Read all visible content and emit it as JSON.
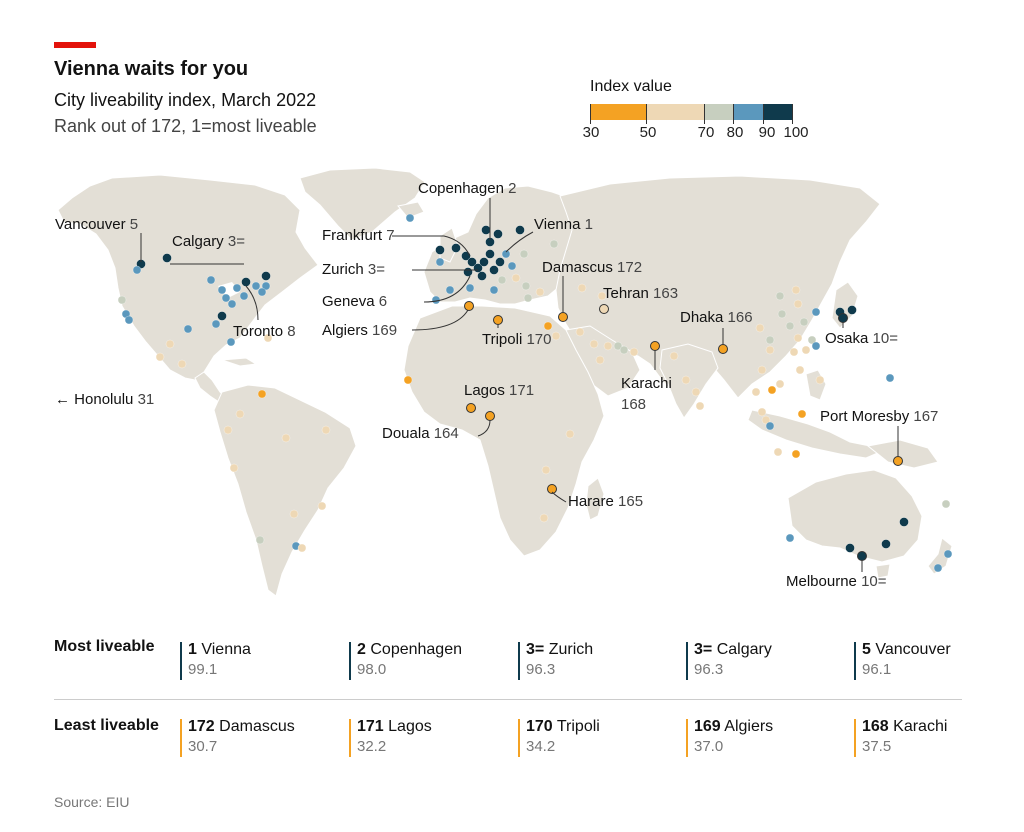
{
  "header": {
    "title": "Vienna waits for you",
    "subtitle": "City liveability index, March 2022",
    "note": "Rank out of 172, 1=most liveable"
  },
  "legend": {
    "title": "Index value",
    "ticks": [
      "30",
      "50",
      "70",
      "80",
      "90",
      "100"
    ],
    "bins": [
      {
        "from": 30,
        "to": 50,
        "color": "#f4a223"
      },
      {
        "from": 50,
        "to": 70,
        "color": "#eed8b5"
      },
      {
        "from": 70,
        "to": 80,
        "color": "#c7cfbf"
      },
      {
        "from": 80,
        "to": 90,
        "color": "#5b98bd"
      },
      {
        "from": 90,
        "to": 100,
        "color": "#0f3a4c"
      }
    ]
  },
  "map": {
    "labels": {
      "vancouver": {
        "name": "Vancouver",
        "rank": "5"
      },
      "calgary": {
        "name": "Calgary",
        "rank": "3="
      },
      "toronto": {
        "name": "Toronto",
        "rank": "8"
      },
      "honolulu": {
        "arrow": "←",
        "name": "Honolulu",
        "rank": "31"
      },
      "copenhagen": {
        "name": "Copenhagen",
        "rank": "2"
      },
      "frankfurt": {
        "name": "Frankfurt",
        "rank": "7"
      },
      "zurich": {
        "name": "Zurich",
        "rank": "3="
      },
      "geneva": {
        "name": "Geneva",
        "rank": "6"
      },
      "algiers": {
        "name": "Algiers",
        "rank": "169"
      },
      "vienna": {
        "name": "Vienna",
        "rank": "1"
      },
      "damascus": {
        "name": "Damascus",
        "rank": "172"
      },
      "tehran": {
        "name": "Tehran",
        "rank": "163"
      },
      "tripoli": {
        "name": "Tripoli",
        "rank": "170"
      },
      "lagos": {
        "name": "Lagos",
        "rank": "171"
      },
      "douala": {
        "name": "Douala",
        "rank": "164"
      },
      "harare": {
        "name": "Harare",
        "rank": "165"
      },
      "karachi": {
        "name": "Karachi",
        "rank": "168"
      },
      "dhaka": {
        "name": "Dhaka",
        "rank": "166"
      },
      "osaka": {
        "name": "Osaka",
        "rank": "10="
      },
      "port_moresby": {
        "name": "Port Moresby",
        "rank": "167"
      },
      "melbourne": {
        "name": "Melbourne",
        "rank": "10="
      }
    },
    "dot_colors": {
      "orange": "#f4a223",
      "sand": "#eed8b5",
      "sage": "#c7cfbf",
      "blue": "#5b98bd",
      "navy": "#0f3a4c"
    }
  },
  "most_liveable": {
    "label": "Most liveable",
    "entries": [
      {
        "rank": "1",
        "city": "Vienna",
        "score": "99.1"
      },
      {
        "rank": "2",
        "city": "Copenhagen",
        "score": "98.0"
      },
      {
        "rank": "3=",
        "city": "Zurich",
        "score": "96.3"
      },
      {
        "rank": "3=",
        "city": "Calgary",
        "score": "96.3"
      },
      {
        "rank": "5",
        "city": "Vancouver",
        "score": "96.1"
      }
    ]
  },
  "least_liveable": {
    "label": "Least liveable",
    "entries": [
      {
        "rank": "172",
        "city": "Damascus",
        "score": "30.7"
      },
      {
        "rank": "171",
        "city": "Lagos",
        "score": "32.2"
      },
      {
        "rank": "170",
        "city": "Tripoli",
        "score": "34.2"
      },
      {
        "rank": "169",
        "city": "Algiers",
        "score": "37.0"
      },
      {
        "rank": "168",
        "city": "Karachi",
        "score": "37.5"
      }
    ]
  },
  "source": "Source: EIU"
}
